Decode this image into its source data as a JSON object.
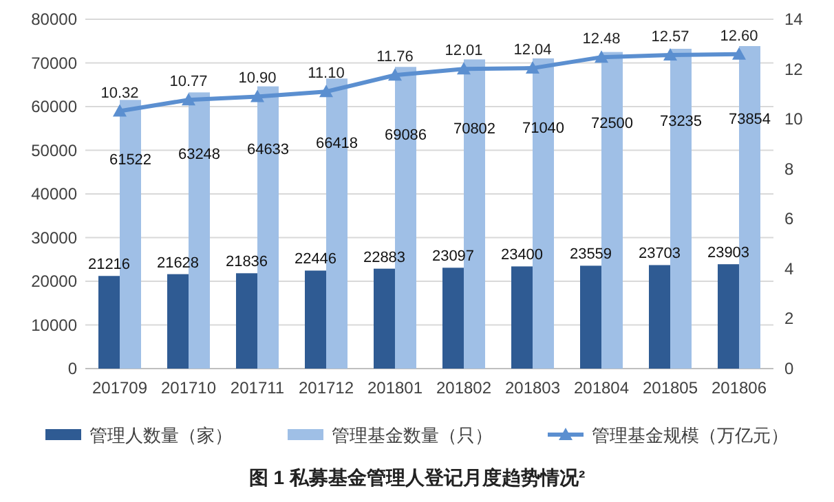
{
  "chart_data": {
    "type": "bar",
    "title": "图 1 私募基金管理人登记月度趋势情况²",
    "categories": [
      "201709",
      "201710",
      "201711",
      "201712",
      "201801",
      "201802",
      "201803",
      "201804",
      "201805",
      "201806"
    ],
    "series": [
      {
        "name": "管理人数量（家）",
        "color": "#2f5b93",
        "values": [
          21216,
          21628,
          21836,
          22446,
          22883,
          23097,
          23400,
          23559,
          23703,
          23903
        ]
      },
      {
        "name": "管理基金数量（只）",
        "color": "#9fbfe6",
        "values": [
          61522,
          63248,
          64633,
          66418,
          69086,
          70802,
          71040,
          72500,
          73235,
          73854
        ]
      },
      {
        "name": "管理基金规模（万亿元）",
        "type": "line",
        "axis": "y2",
        "color": "#5b8fd0",
        "values": [
          10.32,
          10.77,
          10.9,
          11.1,
          11.76,
          12.01,
          12.04,
          12.48,
          12.57,
          12.6
        ],
        "value_labels": [
          "10.32",
          "10.77",
          "10.90",
          "11.10",
          "11.76",
          "12.01",
          "12.04",
          "12.48",
          "12.57",
          "12.60"
        ]
      }
    ],
    "ylim": [
      0,
      80000
    ],
    "yticks": [
      0,
      10000,
      20000,
      30000,
      40000,
      50000,
      60000,
      70000,
      80000
    ],
    "y2lim": [
      0,
      14
    ],
    "y2ticks": [
      0,
      2,
      4,
      6,
      8,
      10,
      12,
      14
    ],
    "grid": "y",
    "legend": "bottom",
    "data_labels": true,
    "marker": "triangle",
    "line_style": "solid"
  }
}
